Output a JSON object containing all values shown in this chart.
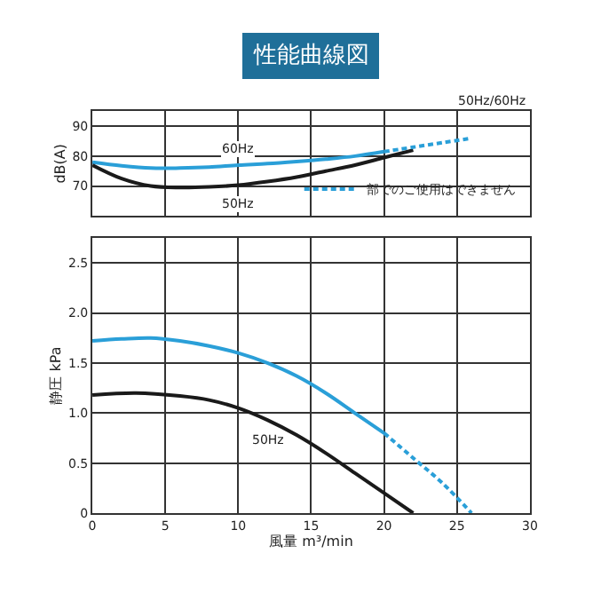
{
  "chart_data": [
    {
      "type": "line",
      "title": "性能曲線図",
      "ylabel": "dB(A)",
      "xlim": [
        0,
        30
      ],
      "xticks": [
        0,
        5,
        10,
        15,
        20,
        25,
        30
      ],
      "ylim": [
        60,
        95
      ],
      "yticks": [
        70,
        80,
        90
      ],
      "tick_labels": "y",
      "grid": true,
      "legend": "bottom right",
      "annotations": [
        "50Hz/60Hz"
      ],
      "series": [
        {
          "name": "60Hz",
          "color": "#2a9fd8",
          "line_style": "solid",
          "x": [
            0,
            2,
            4,
            6,
            8,
            10,
            12,
            14,
            16,
            18,
            20
          ],
          "values": [
            78,
            76.8,
            76,
            76,
            76.3,
            77,
            77.5,
            78.2,
            79,
            80,
            81.5
          ]
        },
        {
          "name": "50Hz",
          "color": "#1a1a1a",
          "line_style": "solid",
          "x": [
            0,
            2,
            4,
            6,
            8,
            10,
            12,
            14,
            16,
            18,
            20,
            22
          ],
          "values": [
            77,
            72.5,
            70,
            69.5,
            69.7,
            70.3,
            71.5,
            73,
            75,
            77,
            79.5,
            82
          ]
        },
        {
          "name": "部でのご使用はできません",
          "color": "#2a9fd8",
          "line_style": "dashed",
          "x": [
            20,
            22,
            24,
            26
          ],
          "values": [
            81.5,
            83,
            84.5,
            86
          ]
        }
      ]
    },
    {
      "type": "line",
      "xlabel": "風量 m³/min",
      "ylabel": "静圧 kPa",
      "xlim": [
        0,
        30
      ],
      "xticks": [
        0,
        5,
        10,
        15,
        20,
        25,
        30
      ],
      "ylim": [
        0,
        2.75
      ],
      "yticks": [
        0,
        0.5,
        {
          "value": 1,
          "label": "1.0"
        },
        1.5,
        {
          "value": 2,
          "label": "2.0"
        },
        2.5
      ],
      "grid": true,
      "series": [
        {
          "color": "#2a9fd8",
          "line_style": "solid",
          "x": [
            0,
            2,
            4,
            6,
            8,
            10,
            12,
            14,
            16,
            18,
            20
          ],
          "values": [
            1.72,
            1.74,
            1.75,
            1.72,
            1.67,
            1.6,
            1.5,
            1.37,
            1.2,
            1.0,
            0.8
          ]
        },
        {
          "name": "50Hz",
          "color": "#1a1a1a",
          "line_style": "solid",
          "x": [
            0,
            3,
            6,
            8,
            10,
            12,
            14,
            16,
            18,
            20,
            22
          ],
          "values": [
            1.18,
            1.2,
            1.17,
            1.13,
            1.05,
            0.93,
            0.78,
            0.6,
            0.4,
            0.2,
            0
          ]
        },
        {
          "color": "#2a9fd8",
          "line_style": "dashed",
          "x": [
            20,
            22,
            24,
            26
          ],
          "values": [
            0.8,
            0.55,
            0.3,
            0
          ]
        }
      ]
    }
  ]
}
